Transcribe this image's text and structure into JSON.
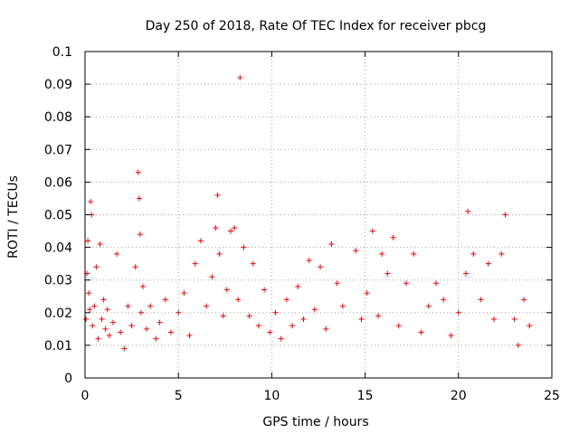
{
  "chart_data": {
    "type": "scatter",
    "title": "Day 250 of 2018, Rate Of TEC Index for receiver pbcg",
    "xlabel": "GPS time / hours",
    "ylabel": "ROTI / TECUs",
    "xlim": [
      0,
      25
    ],
    "ylim": [
      0,
      0.1
    ],
    "xticks": [
      "0",
      "5",
      "10",
      "15",
      "20",
      "25"
    ],
    "yticks": [
      "0",
      "0.01",
      "0.02",
      "0.03",
      "0.04",
      "0.05",
      "0.06",
      "0.07",
      "0.08",
      "0.09",
      "0.1"
    ],
    "grid": true,
    "legend": "none",
    "marker": "+",
    "colors": {
      "series": "#ff0000",
      "grid": "#a0a0a0",
      "axis": "#000000"
    },
    "series": [
      {
        "x": [
          0.05,
          0.1,
          0.15,
          0.2,
          0.25,
          0.3,
          0.35,
          0.4,
          0.5,
          0.6,
          0.7,
          0.8,
          0.9,
          1.0,
          1.1,
          1.2,
          1.3,
          1.5,
          1.7,
          1.9,
          2.1,
          2.3,
          2.5,
          2.7,
          2.85,
          2.9,
          2.95,
          3.0,
          3.1,
          3.3,
          3.5,
          3.8,
          4.0,
          4.3,
          4.6,
          5.0,
          5.3,
          5.6,
          5.9,
          6.2,
          6.5,
          6.8,
          7.0,
          7.1,
          7.2,
          7.4,
          7.6,
          7.8,
          8.0,
          8.2,
          8.3,
          8.5,
          8.8,
          9.0,
          9.3,
          9.6,
          9.9,
          10.2,
          10.5,
          10.8,
          11.1,
          11.4,
          11.7,
          12.0,
          12.3,
          12.6,
          12.9,
          13.2,
          13.5,
          13.8,
          14.5,
          14.8,
          15.1,
          15.4,
          15.7,
          15.9,
          16.2,
          16.5,
          16.8,
          17.2,
          17.6,
          18.0,
          18.4,
          18.8,
          19.2,
          19.6,
          20.0,
          20.4,
          20.5,
          20.8,
          21.2,
          21.6,
          21.9,
          22.3,
          22.5,
          23.0,
          23.2,
          23.5,
          23.8
        ],
        "y": [
          0.018,
          0.032,
          0.042,
          0.026,
          0.021,
          0.054,
          0.05,
          0.016,
          0.022,
          0.034,
          0.012,
          0.041,
          0.018,
          0.024,
          0.015,
          0.021,
          0.013,
          0.017,
          0.038,
          0.014,
          0.009,
          0.022,
          0.016,
          0.034,
          0.063,
          0.055,
          0.044,
          0.02,
          0.028,
          0.015,
          0.022,
          0.012,
          0.017,
          0.024,
          0.014,
          0.02,
          0.026,
          0.013,
          0.035,
          0.042,
          0.022,
          0.031,
          0.046,
          0.056,
          0.038,
          0.019,
          0.027,
          0.045,
          0.046,
          0.024,
          0.092,
          0.04,
          0.019,
          0.035,
          0.016,
          0.027,
          0.014,
          0.02,
          0.012,
          0.024,
          0.016,
          0.028,
          0.018,
          0.036,
          0.021,
          0.034,
          0.015,
          0.041,
          0.029,
          0.022,
          0.039,
          0.018,
          0.026,
          0.045,
          0.019,
          0.038,
          0.032,
          0.043,
          0.016,
          0.029,
          0.038,
          0.014,
          0.022,
          0.029,
          0.024,
          0.013,
          0.02,
          0.032,
          0.051,
          0.038,
          0.024,
          0.035,
          0.018,
          0.038,
          0.05,
          0.018,
          0.01,
          0.024,
          0.016
        ]
      }
    ]
  }
}
